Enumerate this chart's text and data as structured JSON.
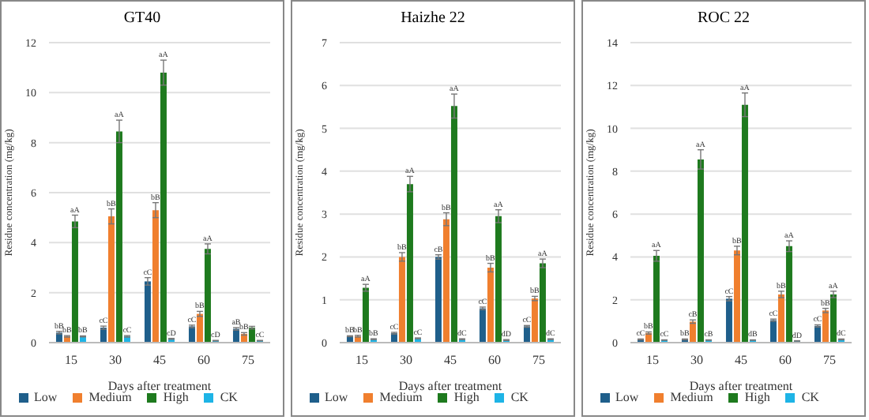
{
  "chart_data": [
    {
      "type": "bar",
      "title": "GT40",
      "xlabel": "Days after treatment",
      "ylabel": "Residue concentration (mg/kg)",
      "categories": [
        "15",
        "30",
        "45",
        "60",
        "75"
      ],
      "ylim": [
        0,
        12
      ],
      "yticks": [
        0,
        2,
        4,
        6,
        8,
        10,
        12
      ],
      "grid": "y",
      "legend": "bottom",
      "series": [
        {
          "name": "Low",
          "color": "#1f5f8b",
          "values": [
            0.4,
            0.6,
            2.45,
            0.65,
            0.55
          ],
          "errors": [
            0.05,
            0.06,
            0.15,
            0.05,
            0.05
          ],
          "value_labels": [
            "bB",
            "cC",
            "cC",
            "cC",
            "aB"
          ]
        },
        {
          "name": "Medium",
          "color": "#f07f2e",
          "values": [
            0.25,
            5.05,
            5.3,
            1.15,
            0.35
          ],
          "errors": [
            0.03,
            0.3,
            0.3,
            0.1,
            0.05
          ],
          "value_labels": [
            "bB",
            "bB",
            "bB",
            "bB",
            "bB"
          ]
        },
        {
          "name": "High",
          "color": "#1e7a1e",
          "values": [
            4.85,
            8.45,
            10.8,
            3.75,
            0.6
          ],
          "errors": [
            0.25,
            0.45,
            0.5,
            0.2,
            0.05
          ],
          "value_labels": [
            "aA",
            "aA",
            "aA",
            "aA",
            null
          ]
        },
        {
          "name": "CK",
          "color": "#1eb4e6",
          "values": [
            0.25,
            0.25,
            0.15,
            0.08,
            0.08
          ],
          "errors": [
            0.02,
            0.03,
            0.02,
            0.01,
            0.01
          ],
          "value_labels": [
            "bB",
            "cC",
            "cD",
            "cD",
            "cC"
          ]
        }
      ]
    },
    {
      "type": "bar",
      "title": "Haizhe 22",
      "xlabel": "Days after treatment",
      "ylabel": "Residue concentration (mg/kg)",
      "categories": [
        "15",
        "30",
        "45",
        "60",
        "75"
      ],
      "ylim": [
        0,
        7
      ],
      "yticks": [
        0,
        1,
        2,
        3,
        4,
        5,
        6,
        7
      ],
      "grid": "y",
      "legend": "bottom",
      "series": [
        {
          "name": "Low",
          "color": "#1f5f8b",
          "values": [
            0.15,
            0.22,
            2.0,
            0.8,
            0.38
          ],
          "errors": [
            0.01,
            0.02,
            0.05,
            0.03,
            0.02
          ],
          "value_labels": [
            "bB",
            "cC",
            "cB",
            "cC",
            "cC"
          ]
        },
        {
          "name": "Medium",
          "color": "#f07f2e",
          "values": [
            0.15,
            2.0,
            2.88,
            1.75,
            1.03
          ],
          "errors": [
            0.02,
            0.1,
            0.15,
            0.1,
            0.05
          ],
          "value_labels": [
            "bB",
            "bB",
            "bB",
            "bB",
            "bB"
          ]
        },
        {
          "name": "High",
          "color": "#1e7a1e",
          "values": [
            1.28,
            3.7,
            5.52,
            2.95,
            1.85
          ],
          "errors": [
            0.08,
            0.18,
            0.28,
            0.15,
            0.1
          ],
          "value_labels": [
            "aA",
            "aA",
            "aA",
            "aA",
            "aA"
          ]
        },
        {
          "name": "CK",
          "color": "#1eb4e6",
          "values": [
            0.08,
            0.1,
            0.08,
            0.06,
            0.08
          ],
          "errors": [
            0.01,
            0.01,
            0.01,
            0.01,
            0.01
          ],
          "value_labels": [
            "bB",
            "cC",
            "dC",
            "dD",
            "dC"
          ]
        }
      ]
    },
    {
      "type": "bar",
      "title": "ROC 22",
      "xlabel": "Days after treatment",
      "ylabel": "Residue concentration (mg/kg)",
      "categories": [
        "15",
        "30",
        "45",
        "60",
        "75"
      ],
      "ylim": [
        0,
        14
      ],
      "yticks": [
        0,
        2,
        4,
        6,
        8,
        10,
        12,
        14
      ],
      "grid": "y",
      "legend": "bottom",
      "series": [
        {
          "name": "Low",
          "color": "#1f5f8b",
          "values": [
            0.15,
            0.15,
            2.05,
            1.05,
            0.78
          ],
          "errors": [
            0.02,
            0.02,
            0.1,
            0.05,
            0.05
          ],
          "value_labels": [
            "cC",
            "bB",
            "cC",
            "cC",
            "cC"
          ]
        },
        {
          "name": "Medium",
          "color": "#f07f2e",
          "values": [
            0.45,
            0.98,
            4.3,
            2.25,
            1.5
          ],
          "errors": [
            0.05,
            0.08,
            0.2,
            0.15,
            0.1
          ],
          "value_labels": [
            "bB",
            "cB",
            "bB",
            "bB",
            "bB"
          ]
        },
        {
          "name": "High",
          "color": "#1e7a1e",
          "values": [
            4.05,
            8.55,
            11.1,
            4.5,
            2.25
          ],
          "errors": [
            0.25,
            0.45,
            0.55,
            0.25,
            0.15
          ],
          "value_labels": [
            "aA",
            "aA",
            "aA",
            "aA",
            "aA"
          ]
        },
        {
          "name": "CK",
          "color": "#1eb4e6",
          "values": [
            0.12,
            0.12,
            0.12,
            0.08,
            0.15
          ],
          "errors": [
            0.01,
            0.01,
            0.01,
            0.01,
            0.02
          ],
          "value_labels": [
            "cC",
            "cB",
            "dB",
            "dD",
            "dC"
          ]
        }
      ]
    }
  ]
}
